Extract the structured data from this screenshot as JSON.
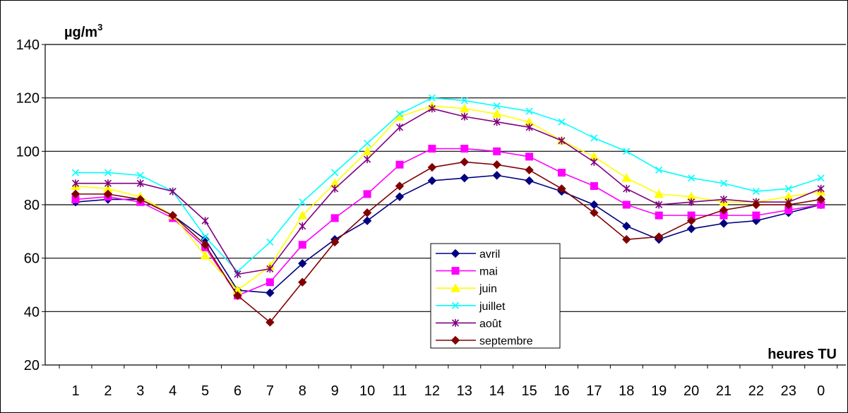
{
  "chart_data": {
    "type": "line",
    "title": "",
    "ylabel_base": "µg/m",
    "ylabel_sup": "3",
    "xlabel": "heures TU",
    "categories": [
      "1",
      "2",
      "3",
      "4",
      "5",
      "6",
      "7",
      "8",
      "9",
      "10",
      "11",
      "12",
      "13",
      "14",
      "15",
      "16",
      "17",
      "18",
      "19",
      "20",
      "21",
      "22",
      "23",
      "0"
    ],
    "ylim": [
      20,
      140
    ],
    "yticks": [
      20,
      40,
      60,
      80,
      100,
      120,
      140
    ],
    "grid": true,
    "legend_position": "center",
    "series": [
      {
        "name": "avril",
        "color": "#000080",
        "marker": "diamond",
        "values": [
          81,
          82,
          82,
          76,
          67,
          48,
          47,
          58,
          67,
          74,
          83,
          89,
          90,
          91,
          89,
          85,
          80,
          72,
          67,
          71,
          73,
          74,
          77,
          80
        ]
      },
      {
        "name": "mai",
        "color": "#ff00ff",
        "marker": "square",
        "values": [
          82,
          83,
          81,
          75,
          64,
          46,
          51,
          65,
          75,
          84,
          95,
          101,
          101,
          100,
          98,
          92,
          87,
          80,
          76,
          76,
          76,
          76,
          78,
          80
        ]
      },
      {
        "name": "juin",
        "color": "#ffff00",
        "marker": "triangle",
        "values": [
          87,
          86,
          83,
          76,
          61,
          48,
          57,
          76,
          88,
          100,
          113,
          117,
          116,
          114,
          111,
          104,
          98,
          90,
          84,
          83,
          81,
          81,
          83,
          85
        ]
      },
      {
        "name": "juillet",
        "color": "#00ffff",
        "marker": "x",
        "values": [
          92,
          92,
          91,
          85,
          68,
          55,
          66,
          81,
          92,
          103,
          114,
          120,
          119,
          117,
          115,
          111,
          105,
          100,
          93,
          90,
          88,
          85,
          86,
          90
        ]
      },
      {
        "name": "août",
        "color": "#800080",
        "marker": "star",
        "values": [
          88,
          88,
          88,
          85,
          74,
          54,
          56,
          72,
          86,
          97,
          109,
          116,
          113,
          111,
          109,
          104,
          96,
          86,
          80,
          81,
          82,
          81,
          81,
          86
        ]
      },
      {
        "name": "septembre",
        "color": "#800000",
        "marker": "diamond",
        "values": [
          84,
          84,
          82,
          76,
          65,
          46,
          36,
          51,
          66,
          77,
          87,
          94,
          96,
          95,
          93,
          86,
          77,
          67,
          68,
          74,
          78,
          80,
          80,
          82
        ]
      }
    ]
  }
}
